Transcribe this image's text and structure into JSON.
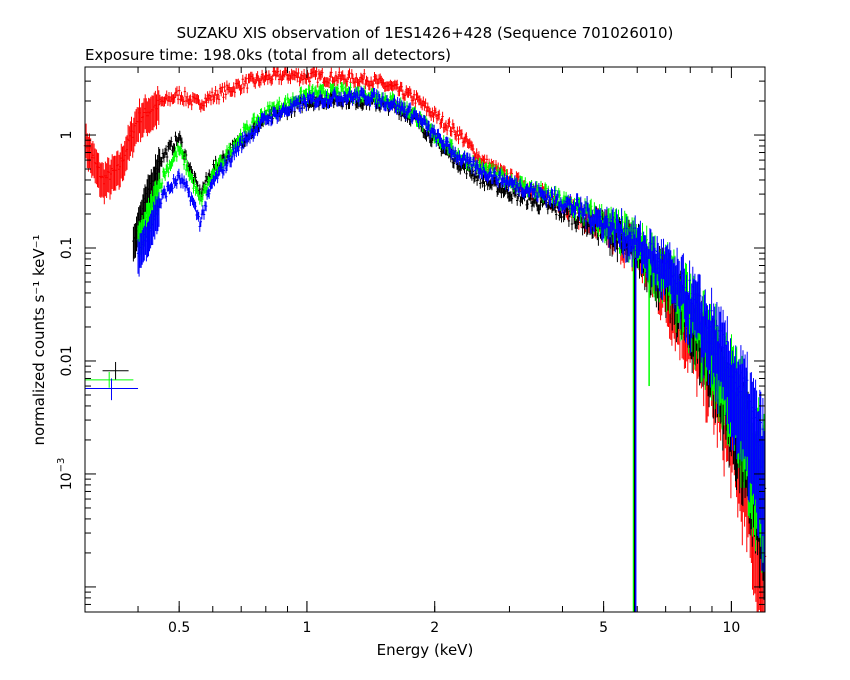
{
  "chart_data": {
    "type": "scatter",
    "title": "SUZAKU XIS observation of 1ES1426+428 (Sequence 701026010)",
    "subtitle": "Exposure time: 198.0ks (total from all detectors)",
    "xlabel": "Energy (keV)",
    "ylabel": "normalized counts s⁻¹ keV⁻¹",
    "x_scale": "log",
    "y_scale": "log",
    "xlim": [
      0.3,
      12
    ],
    "ylim": [
      6e-05,
      4
    ],
    "grid": false,
    "legend": "none",
    "x_ticks": [
      {
        "value": 0.5,
        "label": "0.5"
      },
      {
        "value": 1,
        "label": "1"
      },
      {
        "value": 2,
        "label": "2"
      },
      {
        "value": 5,
        "label": "5"
      },
      {
        "value": 10,
        "label": "10"
      }
    ],
    "y_ticks": [
      {
        "value": 1,
        "label": "1"
      },
      {
        "value": 0.1,
        "label": "0.1"
      },
      {
        "value": 0.01,
        "label": "0.01"
      },
      {
        "value": 0.001,
        "label": "10",
        "exponent": "−3"
      }
    ],
    "series": [
      {
        "color": "#ff0000",
        "x": [
          0.3,
          0.33,
          0.36,
          0.4,
          0.45,
          0.5,
          0.55,
          0.6,
          0.7,
          0.8,
          0.9,
          1.0,
          1.2,
          1.4,
          1.6,
          1.8,
          2.0,
          2.3,
          2.6,
          3.0,
          3.5,
          4.0,
          4.5,
          5.0,
          5.5,
          6.0,
          6.5,
          7.0,
          8.0,
          9.0,
          10.0,
          11.0,
          12.0
        ],
        "y": [
          0.9,
          0.4,
          0.5,
          1.4,
          1.9,
          2.3,
          1.9,
          2.2,
          2.8,
          3.2,
          3.4,
          3.3,
          3.2,
          3.1,
          2.6,
          2.1,
          1.5,
          1.0,
          0.58,
          0.42,
          0.31,
          0.25,
          0.19,
          0.15,
          0.12,
          0.095,
          0.065,
          0.04,
          0.018,
          0.008,
          0.003,
          0.001,
          0.0002
        ]
      },
      {
        "color": "#000000",
        "x": [
          0.39,
          0.42,
          0.45,
          0.5,
          0.53,
          0.56,
          0.6,
          0.7,
          0.8,
          1.0,
          1.2,
          1.4,
          1.6,
          1.8,
          2.0,
          2.3,
          2.6,
          3.0,
          3.5,
          4.0,
          4.5,
          5.0,
          5.5,
          6.0,
          6.5,
          7.0,
          8.0,
          9.0,
          10.0,
          11.0,
          12.0
        ],
        "y": [
          0.12,
          0.28,
          0.6,
          0.95,
          0.5,
          0.3,
          0.5,
          0.9,
          1.4,
          2.0,
          2.1,
          2.0,
          1.8,
          1.4,
          0.9,
          0.55,
          0.4,
          0.31,
          0.25,
          0.21,
          0.18,
          0.15,
          0.12,
          0.1,
          0.07,
          0.05,
          0.025,
          0.012,
          0.005,
          0.002,
          0.0008
        ]
      },
      {
        "color": "#00ff00",
        "x": [
          0.4,
          0.43,
          0.46,
          0.5,
          0.53,
          0.56,
          0.6,
          0.7,
          0.8,
          1.0,
          1.2,
          1.4,
          1.6,
          1.8,
          2.0,
          2.3,
          2.6,
          3.0,
          3.5,
          4.0,
          4.5,
          5.0,
          5.5,
          6.0,
          6.5,
          7.0,
          8.0,
          9.0,
          10.0,
          11.0,
          12.0
        ],
        "y": [
          0.11,
          0.22,
          0.45,
          0.75,
          0.45,
          0.26,
          0.45,
          1.0,
          1.6,
          2.3,
          2.4,
          2.3,
          2.0,
          1.5,
          1.0,
          0.65,
          0.5,
          0.4,
          0.32,
          0.26,
          0.21,
          0.17,
          0.14,
          0.11,
          0.08,
          0.06,
          0.03,
          0.015,
          0.007,
          0.003,
          0.0012
        ]
      },
      {
        "color": "#0000ff",
        "x": [
          0.4,
          0.43,
          0.46,
          0.5,
          0.53,
          0.56,
          0.6,
          0.7,
          0.8,
          1.0,
          1.2,
          1.4,
          1.6,
          1.8,
          2.0,
          2.3,
          2.6,
          3.0,
          3.5,
          4.0,
          4.5,
          5.0,
          5.5,
          6.0,
          6.5,
          7.0,
          8.0,
          9.0,
          10.0,
          11.0,
          12.0
        ],
        "y": [
          0.09,
          0.16,
          0.3,
          0.42,
          0.3,
          0.17,
          0.38,
          0.85,
          1.4,
          2.0,
          2.2,
          2.2,
          1.9,
          1.5,
          1.0,
          0.62,
          0.48,
          0.38,
          0.31,
          0.26,
          0.21,
          0.17,
          0.14,
          0.11,
          0.085,
          0.065,
          0.035,
          0.018,
          0.008,
          0.004,
          0.0015
        ]
      }
    ],
    "error_crosses": [
      {
        "color": "#000000",
        "x": [
          0.33,
          0.38
        ],
        "y": 0.0082,
        "ylim": [
          0.0068,
          0.0098
        ]
      },
      {
        "color": "#00ff00",
        "x": [
          0.3,
          0.39
        ],
        "y": 0.0068,
        "ylim": [
          0.0058,
          0.008
        ]
      },
      {
        "color": "#0000ff",
        "x": [
          0.3,
          0.4
        ],
        "y": 0.0057,
        "ylim": [
          0.0045,
          0.007
        ]
      }
    ]
  }
}
